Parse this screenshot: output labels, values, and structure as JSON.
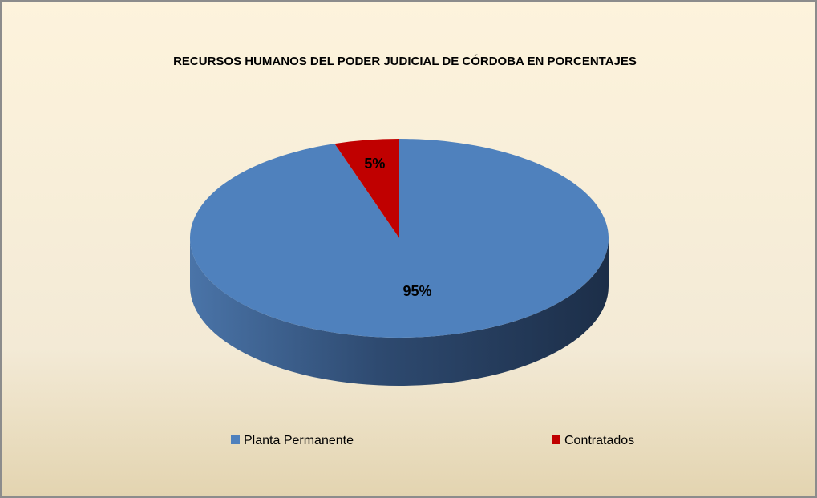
{
  "chart_data": {
    "type": "pie",
    "title": "RECURSOS HUMANOS DEL PODER JUDICIAL DE CÓRDOBA EN PORCENTAJES",
    "categories": [
      "Planta Permanente",
      "Contratados"
    ],
    "values": [
      95,
      5
    ],
    "value_labels": [
      "95%",
      "5%"
    ],
    "colors": [
      "#4f81bd",
      "#c00000"
    ],
    "legend": "bottom"
  }
}
